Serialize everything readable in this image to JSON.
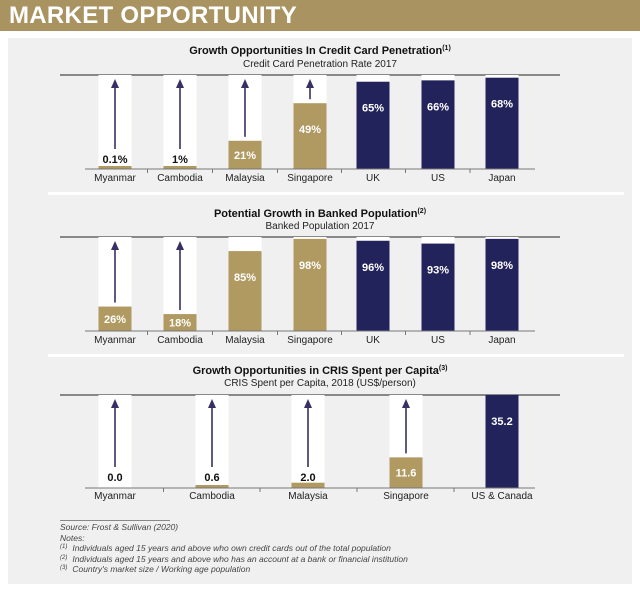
{
  "header": {
    "title": "MARKET OPPORTUNITY"
  },
  "colors": {
    "gold": "#b09a61",
    "navy": "#23235c",
    "arrow": "#3a2f64",
    "panel": "#f0f0f0",
    "column": "#ffffff",
    "axis": "#555555"
  },
  "notes": {
    "source": "Source: Frost & Sullivan (2020)",
    "label": "Notes:",
    "items": [
      {
        "mark": "(1)",
        "text": "Individuals aged 15 years and above who own credit cards out of the total population"
      },
      {
        "mark": "(2)",
        "text": "Individuals aged 15 years and above who has an account at a bank or financial institution"
      },
      {
        "mark": "(3)",
        "text": "Country's market size / Working age population"
      }
    ]
  },
  "chart_data": [
    {
      "type": "bar",
      "title": "Growth Opportunities In Credit Card Penetration",
      "title_sup": "(1)",
      "subtitle": "Credit Card Penetration Rate 2017",
      "categories": [
        "Myanmar",
        "Cambodia",
        "Malaysia",
        "Singapore",
        "UK",
        "US",
        "Japan"
      ],
      "values": [
        0.1,
        1,
        21,
        49,
        65,
        66,
        68
      ],
      "labels": [
        "0.1%",
        "1%",
        "21%",
        "49%",
        "65%",
        "66%",
        "68%"
      ],
      "bar_colors": [
        "gold",
        "gold",
        "gold",
        "gold",
        "navy",
        "navy",
        "navy"
      ],
      "arrows": [
        true,
        true,
        true,
        true,
        false,
        false,
        false
      ],
      "ylim": [
        0,
        70
      ]
    },
    {
      "type": "bar",
      "title": "Potential Growth in Banked Population",
      "title_sup": "(2)",
      "subtitle": "Banked Population 2017",
      "categories": [
        "Myanmar",
        "Cambodia",
        "Malaysia",
        "Singapore",
        "UK",
        "US",
        "Japan"
      ],
      "values": [
        26,
        18,
        85,
        98,
        96,
        93,
        98
      ],
      "labels": [
        "26%",
        "18%",
        "85%",
        "98%",
        "96%",
        "93%",
        "98%"
      ],
      "bar_colors": [
        "gold",
        "gold",
        "gold",
        "gold",
        "navy",
        "navy",
        "navy"
      ],
      "arrows": [
        true,
        true,
        false,
        false,
        false,
        false,
        false
      ],
      "ylim": [
        0,
        100
      ]
    },
    {
      "type": "bar",
      "title": "Growth Opportunities in CRIS Spent per Capita",
      "title_sup": "(3)",
      "subtitle": "CRIS Spent per Capita, 2018 (US$/person)",
      "categories": [
        "Myanmar",
        "Cambodia",
        "Malaysia",
        "Singapore",
        "US & Canada"
      ],
      "values": [
        0.0,
        0.6,
        2.0,
        11.6,
        35.2
      ],
      "labels": [
        "0.0",
        "0.6",
        "2.0",
        "11.6",
        "35.2"
      ],
      "bar_colors": [
        "gold",
        "gold",
        "gold",
        "gold",
        "navy"
      ],
      "arrows": [
        true,
        true,
        true,
        true,
        false
      ],
      "ylim": [
        0,
        35.2
      ]
    }
  ]
}
